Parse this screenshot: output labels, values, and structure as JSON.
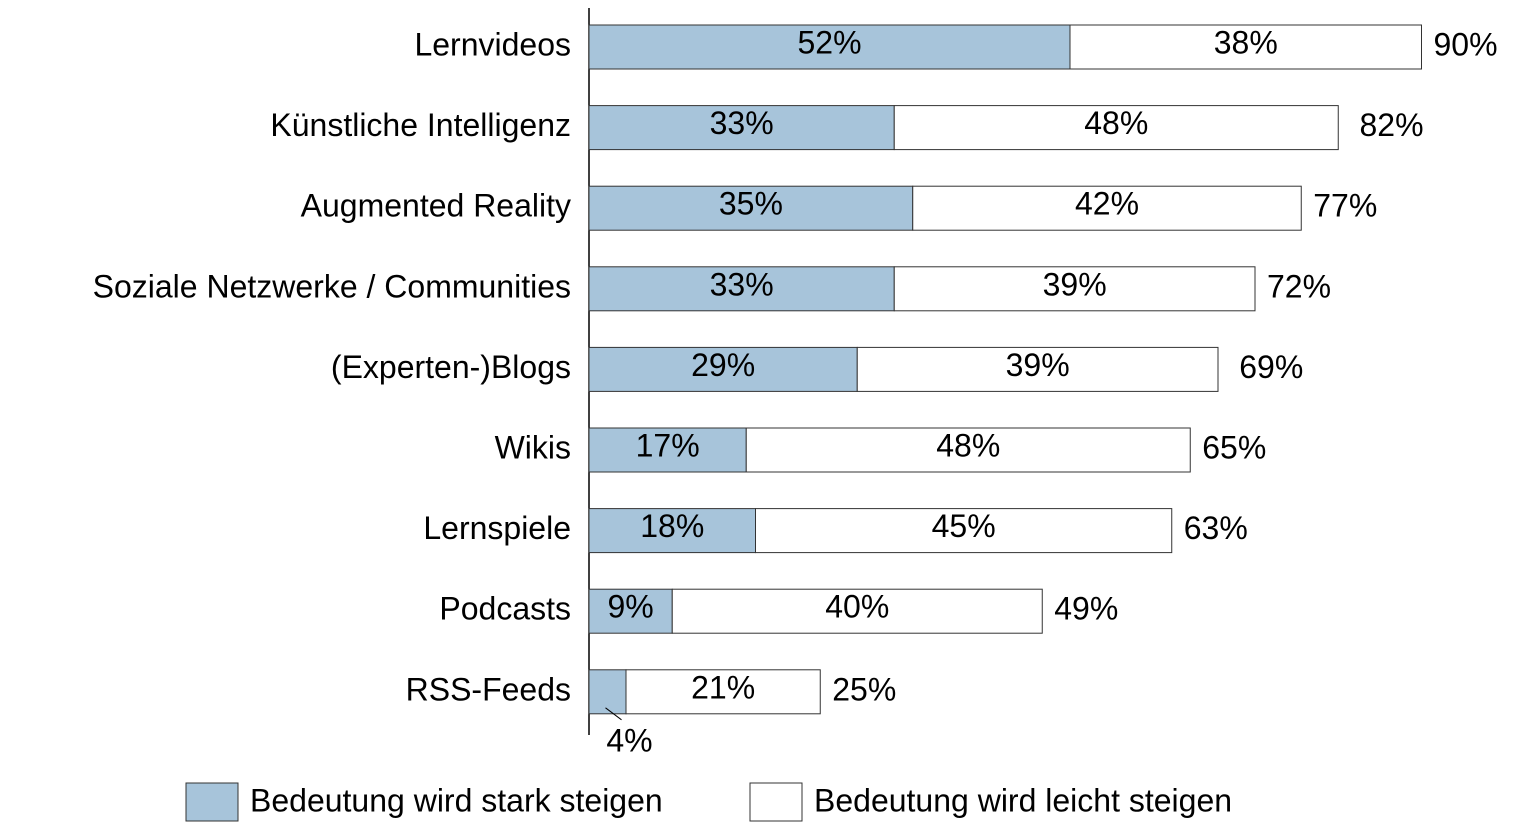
{
  "chart_data": {
    "type": "stacked-bar-horizontal",
    "categories": [
      "Lernvideos",
      "Künstliche Intelligenz",
      "Augmented Reality",
      "Soziale Netzwerke / Communities",
      "(Experten-)Blogs",
      "Wikis",
      "Lernspiele",
      "Podcasts",
      "RSS-Feeds"
    ],
    "series": [
      {
        "name": "Bedeutung wird stark steigen",
        "color": "#a7c4da",
        "values": [
          52,
          33,
          35,
          33,
          29,
          17,
          18,
          9,
          4
        ],
        "value_labels": [
          "52%",
          "33%",
          "35%",
          "33%",
          "29%",
          "17%",
          "18%",
          "9%",
          "4%"
        ]
      },
      {
        "name": "Bedeutung wird leicht steigen",
        "color": "#ffffff",
        "values": [
          38,
          48,
          42,
          39,
          39,
          48,
          45,
          40,
          21
        ],
        "value_labels": [
          "38%",
          "48%",
          "42%",
          "39%",
          "39%",
          "48%",
          "45%",
          "40%",
          "21%"
        ]
      }
    ],
    "totals": [
      90,
      82,
      77,
      72,
      69,
      65,
      63,
      49,
      25
    ],
    "total_labels": [
      "90%",
      "82%",
      "77%",
      "72%",
      "69%",
      "65%",
      "63%",
      "49%",
      "25%"
    ],
    "xlim": [
      0,
      100
    ]
  }
}
